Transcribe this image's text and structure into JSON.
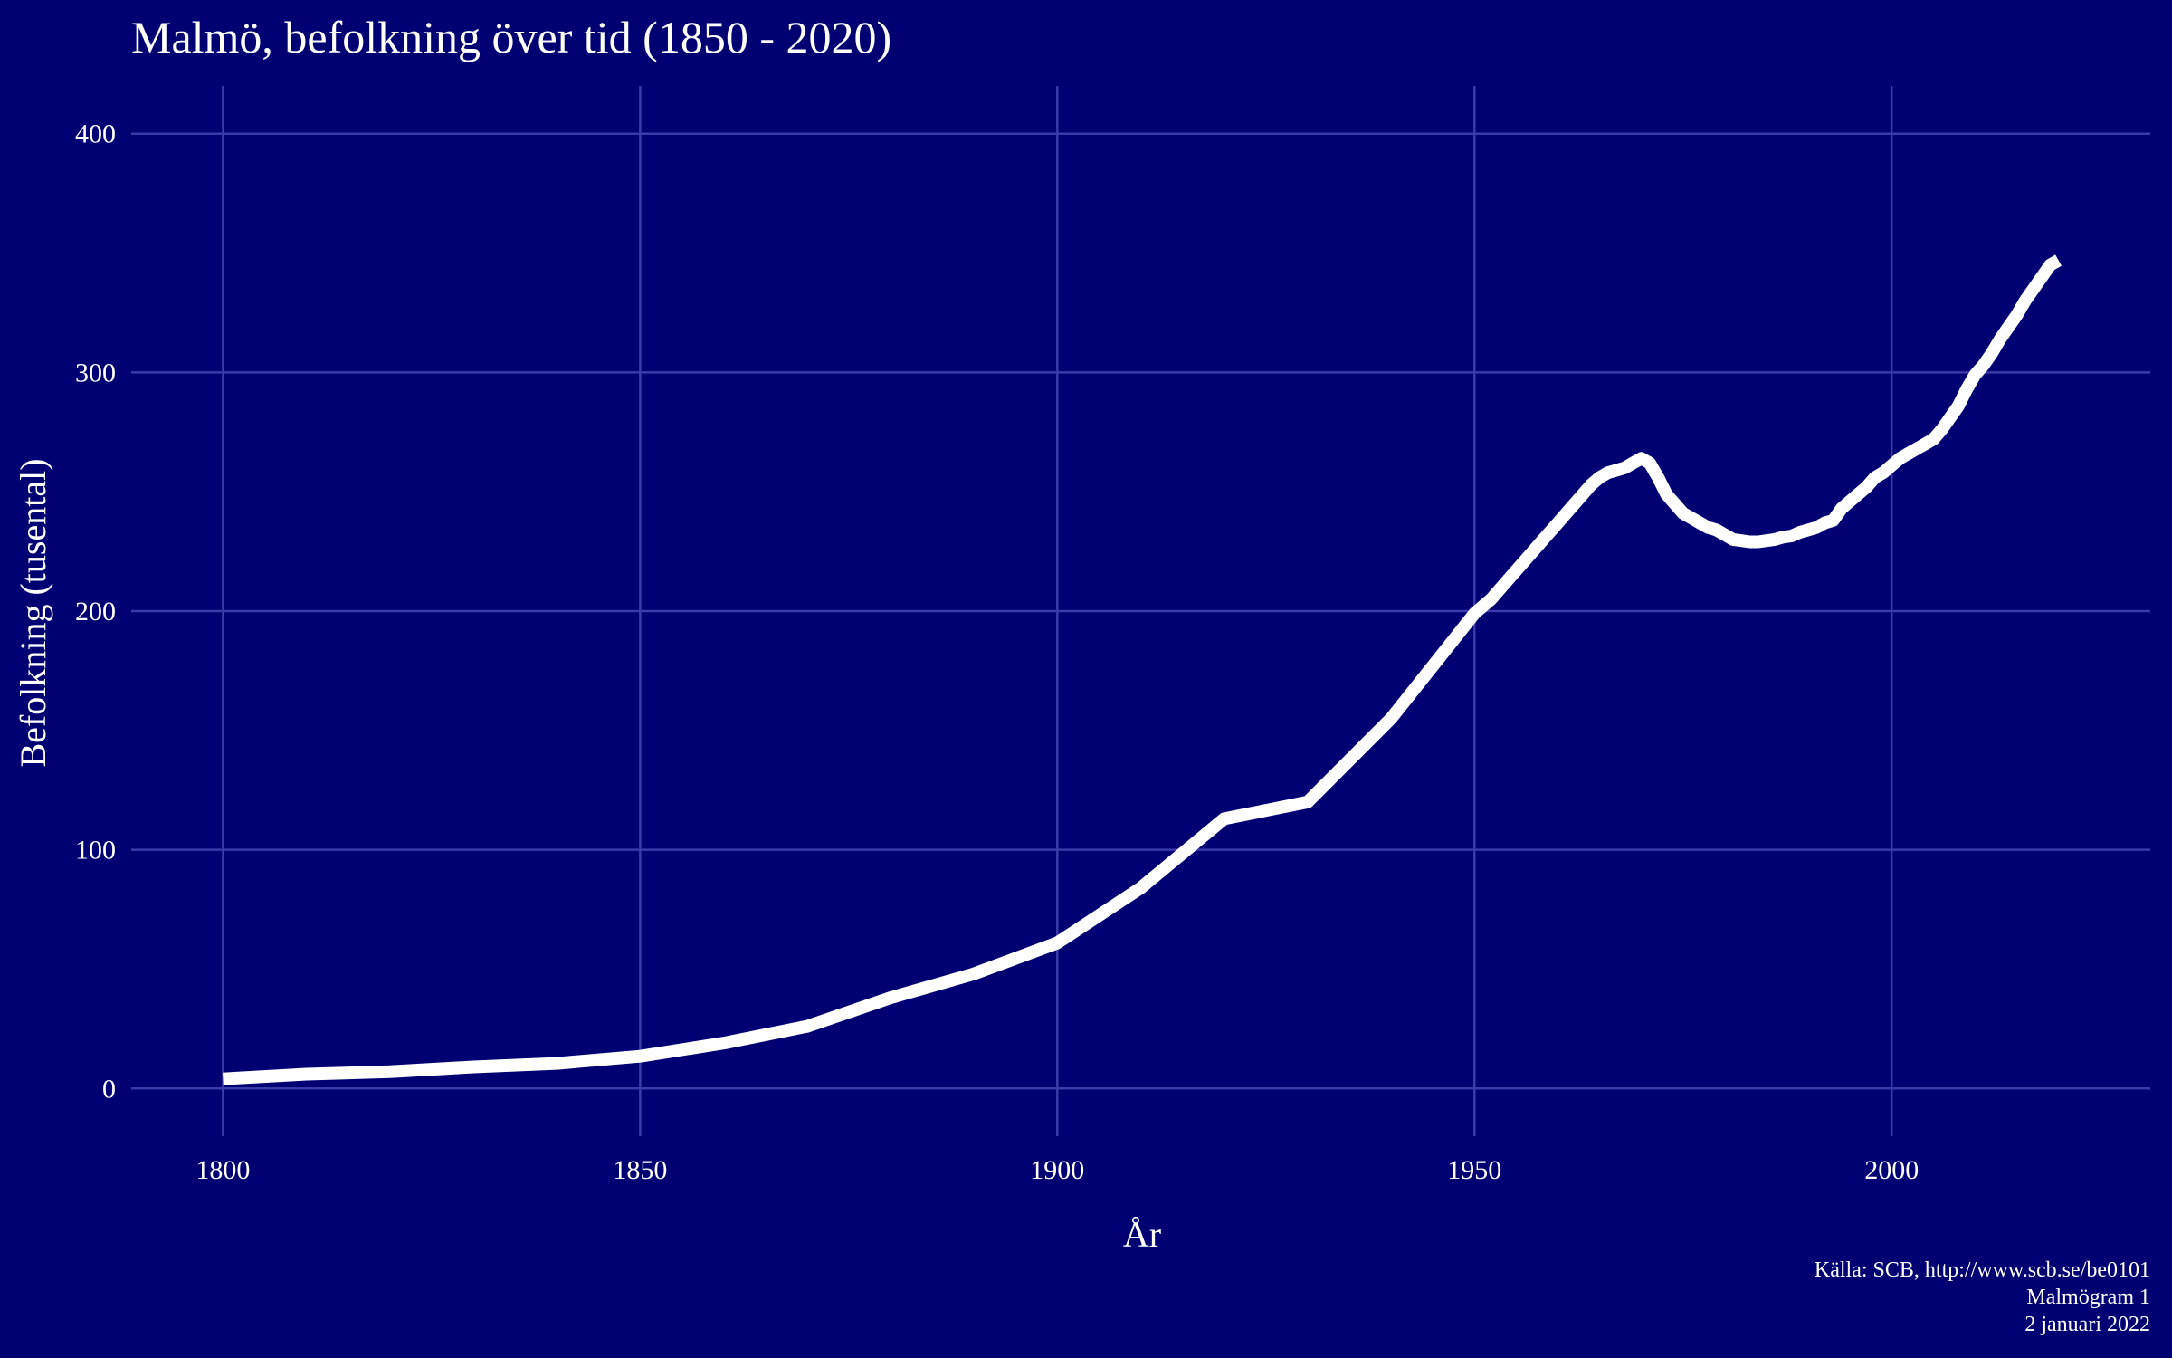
{
  "chart_data": {
    "type": "line",
    "title": "Malmö, befolkning över tid (1850 - 2020)",
    "xlabel": "År",
    "ylabel": "Befolkning (tusental)",
    "xlim": [
      1789,
      2031
    ],
    "ylim": [
      -20,
      420
    ],
    "x_ticks": [
      1800,
      1850,
      1900,
      1950,
      2000
    ],
    "y_ticks": [
      0,
      100,
      200,
      300,
      400
    ],
    "grid": true,
    "line_color": "#ffffff",
    "background": "#000072",
    "grid_color": "#3a3aa8",
    "series": [
      {
        "x": [
          1800,
          1810,
          1820,
          1830,
          1840,
          1850,
          1860,
          1870,
          1880,
          1890,
          1900,
          1910,
          1920,
          1930,
          1940,
          1945,
          1950,
          1952,
          1954,
          1956,
          1958,
          1960,
          1962,
          1964,
          1965,
          1966,
          1967,
          1968,
          1969,
          1970,
          1971,
          1972,
          1973,
          1974,
          1975,
          1976,
          1977,
          1978,
          1979,
          1980,
          1981,
          1982,
          1983,
          1984,
          1985,
          1986,
          1987,
          1988,
          1989,
          1990,
          1991,
          1992,
          1993,
          1994,
          1995,
          1996,
          1997,
          1998,
          1999,
          2000,
          2001,
          2002,
          2003,
          2004,
          2005,
          2006,
          2007,
          2008,
          2009,
          2010,
          2011,
          2012,
          2013,
          2014,
          2015,
          2016,
          2017,
          2018,
          2019,
          2020
        ],
        "y": [
          4,
          6,
          7,
          9,
          10.5,
          13.5,
          19,
          26,
          38,
          48,
          61,
          84,
          113,
          120,
          155,
          177,
          199,
          205,
          213,
          221,
          229,
          237,
          245,
          253,
          256,
          258,
          259,
          260,
          262,
          264,
          262,
          256,
          249,
          245,
          241,
          239,
          237,
          235,
          234,
          232,
          230,
          229.5,
          229,
          229,
          229.5,
          230,
          231,
          231.5,
          233,
          234,
          235,
          237,
          238,
          243,
          246,
          249,
          252,
          256,
          258,
          261,
          264,
          266,
          268,
          270,
          272,
          276,
          281,
          286,
          293,
          299,
          303,
          308,
          314,
          319,
          324,
          330,
          335,
          340,
          345,
          347
        ]
      }
    ]
  },
  "caption": {
    "line1": "Källa: SCB, http://www.scb.se/be0101",
    "line2": "Malmögram 1",
    "line3": "2 januari 2022"
  }
}
